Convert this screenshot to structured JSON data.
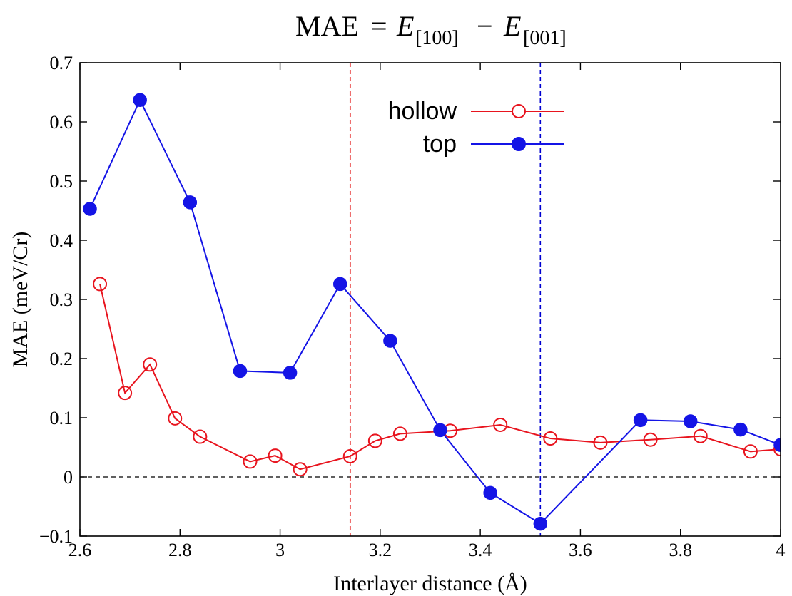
{
  "chart_data": {
    "type": "line",
    "title": {
      "lhs": "MAE",
      "eq": "=",
      "e1": "E",
      "sub1": "[100]",
      "minus": "−",
      "e2": "E",
      "sub2": "[001]"
    },
    "xlabel": "Interlayer distance (Å)",
    "ylabel": "MAE (meV/Cr)",
    "xlim": [
      2.6,
      4.0
    ],
    "ylim": [
      -0.1,
      0.7
    ],
    "xticks": [
      "2.6",
      "2.8",
      "3",
      "3.2",
      "3.4",
      "3.6",
      "3.8",
      "4"
    ],
    "yticks": [
      "−0.1",
      "0",
      "0.1",
      "0.2",
      "0.3",
      "0.4",
      "0.5",
      "0.6",
      "0.7"
    ],
    "zero_line": 0,
    "vertical_lines": [
      {
        "x": 3.14,
        "color": "#e00000"
      },
      {
        "x": 3.52,
        "color": "#0000d0"
      }
    ],
    "legend_position": "top-center",
    "series": [
      {
        "name": "hollow",
        "color": "#e8141e",
        "marker": "open-circle",
        "x": [
          2.64,
          2.69,
          2.74,
          2.79,
          2.84,
          2.94,
          2.99,
          3.04,
          3.14,
          3.19,
          3.24,
          3.34,
          3.44,
          3.54,
          3.64,
          3.74,
          3.84,
          3.94,
          4.0
        ],
        "y": [
          0.326,
          0.142,
          0.19,
          0.099,
          0.068,
          0.026,
          0.036,
          0.013,
          0.035,
          0.061,
          0.073,
          0.078,
          0.088,
          0.065,
          0.058,
          0.063,
          0.069,
          0.043,
          0.047
        ]
      },
      {
        "name": "top",
        "color": "#1414e6",
        "marker": "filled-circle",
        "x": [
          2.62,
          2.72,
          2.82,
          2.92,
          3.02,
          3.12,
          3.22,
          3.32,
          3.42,
          3.52,
          3.72,
          3.82,
          3.92,
          4.0
        ],
        "y": [
          0.453,
          0.637,
          0.464,
          0.179,
          0.176,
          0.326,
          0.23,
          0.079,
          -0.027,
          -0.079,
          0.096,
          0.094,
          0.08,
          0.054
        ]
      }
    ]
  }
}
